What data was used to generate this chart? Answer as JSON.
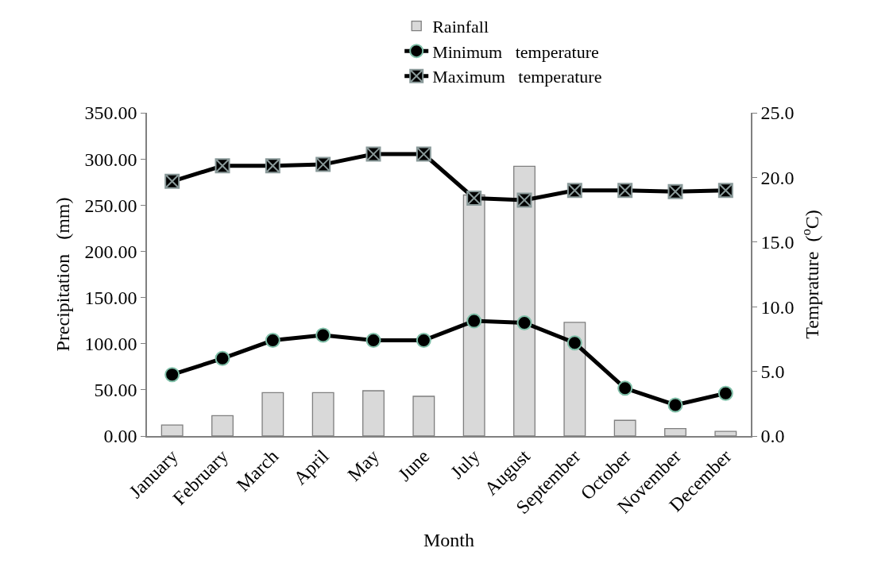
{
  "chart_data": {
    "type": "bar",
    "xlabel": "Month",
    "ylabel": "Precipitation   (mm)",
    "y2label": "Temprature  ($^{o}$C)",
    "categories": [
      "January",
      "February",
      "March",
      "April",
      "May",
      "June",
      "July",
      "August",
      "September",
      "October",
      "November",
      "December"
    ],
    "series": [
      {
        "name": "Rainfall",
        "color": "#d9d9d9",
        "values": [
          12,
          22,
          47,
          47,
          49,
          43,
          261,
          292,
          123,
          17,
          8,
          5
        ]
      },
      {
        "name": "Minimum   temperature",
        "type": "line",
        "axis": "y2",
        "color": "#000000",
        "marker": "circle",
        "values": [
          4.75,
          6.0,
          7.4,
          7.8,
          7.4,
          7.4,
          8.9,
          8.75,
          7.2,
          3.7,
          2.4,
          3.3
        ]
      },
      {
        "name": "Maximum   temperature",
        "type": "line",
        "axis": "y2",
        "color": "#000000",
        "marker": "cross",
        "values": [
          19.7,
          20.9,
          20.9,
          21.0,
          21.8,
          21.8,
          18.4,
          18.25,
          19.0,
          19.0,
          18.9,
          19.0
        ]
      }
    ],
    "ylim": [
      0,
      350
    ],
    "yticks": [
      {
        "value": 0,
        "label": "0.00"
      },
      {
        "value": 50,
        "label": "50.00"
      },
      {
        "value": 100,
        "label": "100.00"
      },
      {
        "value": 150,
        "label": "150.00"
      },
      {
        "value": 200,
        "label": "200.00"
      },
      {
        "value": 250,
        "label": "250.00"
      },
      {
        "value": 300,
        "label": "300.00"
      },
      {
        "value": 350,
        "label": "350.00"
      }
    ],
    "y2lim": [
      0,
      25
    ],
    "y2ticks": [
      {
        "value": 0,
        "label": "0.0"
      },
      {
        "value": 5,
        "label": "5.0"
      },
      {
        "value": 10,
        "label": "10.0"
      },
      {
        "value": 15,
        "label": "15.0"
      },
      {
        "value": 20,
        "label": "20.0"
      },
      {
        "value": 25,
        "label": "25.0"
      }
    ],
    "grid": false,
    "legend": "top",
    "line_style": "solid"
  }
}
